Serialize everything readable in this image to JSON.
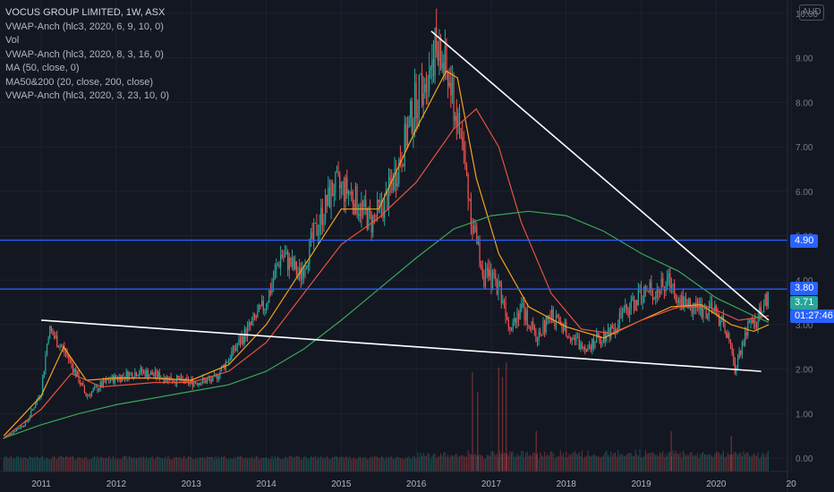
{
  "legend": {
    "title": "VOCUS GROUP LIMITED, 1W, ASX",
    "indicators": [
      "VWAP-Anch (hlc3, 2020, 6, 9, 10, 0)",
      "Vol",
      "VWAP-Anch (hlc3, 2020, 8, 3, 16, 0)",
      "MA (50, close, 0)",
      "MA50&200 (20, close, 200, close)",
      "VWAP-Anch (hlc3, 2020, 3, 23, 10, 0)"
    ]
  },
  "currency": "AUD",
  "price_tags": {
    "level_high": "4.90",
    "level_low": "3.80",
    "last_price": "3.71",
    "countdown": "01:27:46"
  },
  "colors": {
    "background": "#131722",
    "up": "#26a69a",
    "down": "#ef5350",
    "ma_orange": "#f7a21b",
    "ma_red": "#e5533d",
    "ma_green": "#3aa757",
    "hline": "#2962ff",
    "trendline": "#ffffff",
    "countdown_bg": "#2962ff",
    "last_price_bg": "#26a69a"
  },
  "chart_data": {
    "type": "candlestick",
    "title": "VOCUS GROUP LIMITED, 1W, ASX",
    "y_axis": {
      "ticks": [
        "10.00",
        "9.00",
        "8.00",
        "7.00",
        "6.00",
        "5.00",
        "4.00",
        "3.00",
        "2.00",
        "1.00",
        "0.00"
      ],
      "range": [
        -0.3,
        10.3
      ],
      "position": "right"
    },
    "x_axis": {
      "ticks": [
        "2011",
        "2012",
        "2013",
        "2014",
        "2015",
        "2016",
        "2017",
        "2018",
        "2019",
        "2020",
        "20"
      ],
      "range": [
        2010.45,
        2020.95
      ]
    },
    "price_path": [
      [
        2010.5,
        0.45
      ],
      [
        2010.8,
        0.8
      ],
      [
        2011.0,
        1.5
      ],
      [
        2011.1,
        2.9
      ],
      [
        2011.35,
        2.3
      ],
      [
        2011.6,
        1.4
      ],
      [
        2011.9,
        1.75
      ],
      [
        2012.3,
        1.95
      ],
      [
        2012.7,
        1.8
      ],
      [
        2012.95,
        1.7
      ],
      [
        2013.3,
        1.75
      ],
      [
        2013.6,
        2.5
      ],
      [
        2013.8,
        3.0
      ],
      [
        2014.0,
        3.5
      ],
      [
        2014.2,
        4.6
      ],
      [
        2014.45,
        4.1
      ],
      [
        2014.7,
        5.3
      ],
      [
        2014.9,
        6.1
      ],
      [
        2015.1,
        6.0
      ],
      [
        2015.4,
        5.3
      ],
      [
        2015.6,
        5.8
      ],
      [
        2015.8,
        6.8
      ],
      [
        2016.0,
        8.1
      ],
      [
        2016.25,
        9.2
      ],
      [
        2016.4,
        8.7
      ],
      [
        2016.6,
        7.2
      ],
      [
        2016.75,
        5.3
      ],
      [
        2016.9,
        4.1
      ],
      [
        2017.1,
        3.9
      ],
      [
        2017.25,
        3.0
      ],
      [
        2017.4,
        3.4
      ],
      [
        2017.6,
        2.7
      ],
      [
        2017.8,
        3.2
      ],
      [
        2018.0,
        2.9
      ],
      [
        2018.2,
        2.5
      ],
      [
        2018.4,
        2.65
      ],
      [
        2018.6,
        2.9
      ],
      [
        2018.8,
        3.3
      ],
      [
        2019.0,
        3.7
      ],
      [
        2019.25,
        3.8
      ],
      [
        2019.4,
        4.0
      ],
      [
        2019.5,
        3.6
      ],
      [
        2019.7,
        3.4
      ],
      [
        2019.95,
        3.3
      ],
      [
        2020.1,
        3.05
      ],
      [
        2020.25,
        2.0
      ],
      [
        2020.4,
        2.9
      ],
      [
        2020.55,
        3.1
      ],
      [
        2020.7,
        3.71
      ]
    ],
    "moving_averages": [
      {
        "name": "MA (50, close, 0)",
        "color": "#f7a21b",
        "points": [
          [
            2010.5,
            0.5
          ],
          [
            2011.0,
            1.4
          ],
          [
            2011.3,
            2.5
          ],
          [
            2011.6,
            1.75
          ],
          [
            2012.0,
            1.8
          ],
          [
            2012.5,
            1.8
          ],
          [
            2013.0,
            1.75
          ],
          [
            2013.5,
            2.1
          ],
          [
            2014.0,
            3.0
          ],
          [
            2014.5,
            4.3
          ],
          [
            2015.0,
            5.6
          ],
          [
            2015.5,
            5.6
          ],
          [
            2016.0,
            7.4
          ],
          [
            2016.4,
            8.7
          ],
          [
            2016.55,
            8.55
          ],
          [
            2016.8,
            6.3
          ],
          [
            2017.1,
            4.6
          ],
          [
            2017.5,
            3.4
          ],
          [
            2018.0,
            2.95
          ],
          [
            2018.5,
            2.7
          ],
          [
            2019.0,
            3.1
          ],
          [
            2019.4,
            3.4
          ],
          [
            2019.8,
            3.45
          ],
          [
            2020.2,
            3.0
          ],
          [
            2020.5,
            2.85
          ],
          [
            2020.7,
            3.0
          ]
        ]
      },
      {
        "name": "MA (20, close)",
        "color": "#e5533d",
        "points": [
          [
            2010.5,
            0.45
          ],
          [
            2011.0,
            1.1
          ],
          [
            2011.4,
            1.9
          ],
          [
            2011.8,
            1.6
          ],
          [
            2012.5,
            1.7
          ],
          [
            2013.0,
            1.7
          ],
          [
            2013.5,
            1.95
          ],
          [
            2014.0,
            2.6
          ],
          [
            2014.5,
            3.7
          ],
          [
            2015.0,
            4.8
          ],
          [
            2015.5,
            5.4
          ],
          [
            2016.0,
            6.2
          ],
          [
            2016.5,
            7.4
          ],
          [
            2016.8,
            7.85
          ],
          [
            2017.1,
            7.0
          ],
          [
            2017.4,
            5.3
          ],
          [
            2017.8,
            3.7
          ],
          [
            2018.2,
            2.9
          ],
          [
            2018.6,
            2.8
          ],
          [
            2019.0,
            3.1
          ],
          [
            2019.5,
            3.4
          ],
          [
            2019.9,
            3.4
          ],
          [
            2020.3,
            3.1
          ],
          [
            2020.7,
            3.2
          ]
        ]
      },
      {
        "name": "MA (200, close)",
        "color": "#3aa757",
        "points": [
          [
            2010.5,
            0.45
          ],
          [
            2011.0,
            0.75
          ],
          [
            2011.5,
            1.0
          ],
          [
            2012.0,
            1.2
          ],
          [
            2012.5,
            1.35
          ],
          [
            2013.0,
            1.5
          ],
          [
            2013.5,
            1.65
          ],
          [
            2014.0,
            1.95
          ],
          [
            2014.5,
            2.45
          ],
          [
            2015.0,
            3.1
          ],
          [
            2015.5,
            3.8
          ],
          [
            2016.0,
            4.5
          ],
          [
            2016.5,
            5.15
          ],
          [
            2017.0,
            5.45
          ],
          [
            2017.5,
            5.55
          ],
          [
            2018.0,
            5.45
          ],
          [
            2018.5,
            5.1
          ],
          [
            2019.0,
            4.6
          ],
          [
            2019.5,
            4.2
          ],
          [
            2020.0,
            3.6
          ],
          [
            2020.5,
            3.2
          ],
          [
            2020.7,
            3.05
          ]
        ]
      }
    ],
    "horizontal_lines": [
      4.9,
      3.8
    ],
    "trendlines": [
      {
        "from": [
          2016.2,
          9.6
        ],
        "to": [
          2020.7,
          3.1
        ]
      },
      {
        "from": [
          2011.0,
          3.1
        ],
        "to": [
          2020.6,
          1.95
        ]
      }
    ],
    "volume_spikes": [
      [
        2016.75,
        0.9
      ],
      [
        2016.82,
        0.7
      ],
      [
        2017.1,
        0.95
      ],
      [
        2017.15,
        0.85
      ],
      [
        2017.2,
        1.0
      ],
      [
        2017.6,
        0.3
      ],
      [
        2019.4,
        0.3
      ],
      [
        2020.2,
        0.25
      ]
    ]
  }
}
